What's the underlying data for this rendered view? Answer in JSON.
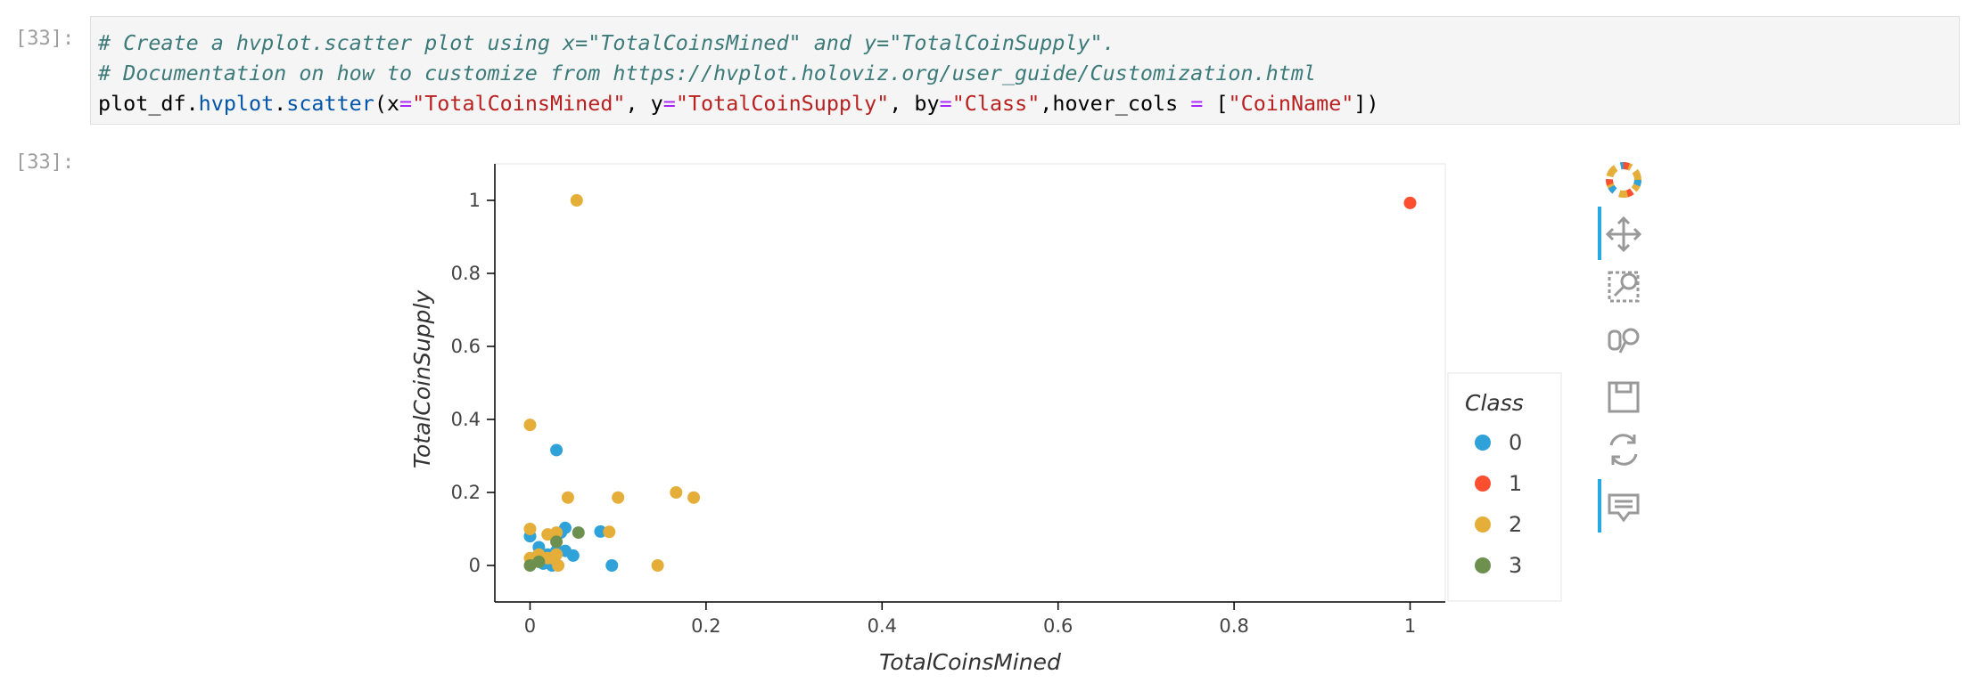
{
  "input_prompt": "[33]:",
  "output_prompt": "[33]:",
  "code": {
    "comments": [
      "# Create a hvplot.scatter plot using x=\"TotalCoinsMined\" and y=\"TotalCoinSupply\".",
      "# Documentation on how to customize from https://hvplot.holoviz.org/user_guide/Customization.html"
    ],
    "tokens": [
      "plot_df.",
      "hvplot",
      ".",
      "scatter",
      "(x",
      "=",
      "\"TotalCoinsMined\"",
      ", y",
      "=",
      "\"TotalCoinSupply\"",
      ", by",
      "=",
      "\"Class\"",
      ",hover_cols ",
      "=",
      " [",
      "\"CoinName\"",
      "])"
    ]
  },
  "chart_data": {
    "type": "scatter",
    "x_label": "TotalCoinsMined",
    "y_label": "TotalCoinSupply",
    "legend_title": "Class",
    "legend": "right",
    "xlim": [
      -0.04,
      1.04
    ],
    "ylim": [
      -0.1,
      1.1
    ],
    "xticks": [
      0,
      0.2,
      0.4,
      0.6,
      0.8,
      1
    ],
    "yticks": [
      0,
      0.2,
      0.4,
      0.6,
      0.8,
      1
    ],
    "series": [
      {
        "name": "0",
        "color": "#30a2da",
        "x": [
          0.03,
          0.08,
          0.093,
          0.049,
          0.04,
          0,
          0.01,
          0.02,
          0.02,
          0.025,
          0.03,
          0.04,
          0.035,
          0.005,
          0.015
        ],
        "values": [
          0.316,
          0.093,
          0,
          0.027,
          0.103,
          0.08,
          0.05,
          0.03,
          0.01,
          0,
          0.04,
          0.04,
          0.09,
          0.02,
          0.005
        ]
      },
      {
        "name": "1",
        "color": "#fc4f30",
        "x": [
          1
        ],
        "values": [
          0.993
        ]
      },
      {
        "name": "2",
        "color": "#e5ae38",
        "x": [
          0.053,
          0,
          0.043,
          0.1,
          0.166,
          0.186,
          0.09,
          0.145,
          0,
          0.02,
          0.03,
          0.01,
          0.02,
          0.03,
          0.032,
          0,
          0.025
        ],
        "values": [
          1,
          0.385,
          0.186,
          0.186,
          0.2,
          0.186,
          0.092,
          0,
          0.1,
          0.085,
          0.09,
          0.03,
          0.02,
          0.03,
          0,
          0.02,
          0.02
        ]
      },
      {
        "name": "3",
        "color": "#6d904f",
        "x": [
          0.055,
          0,
          0.01,
          0.03
        ],
        "values": [
          0.09,
          0,
          0.01,
          0.065
        ]
      }
    ]
  }
}
